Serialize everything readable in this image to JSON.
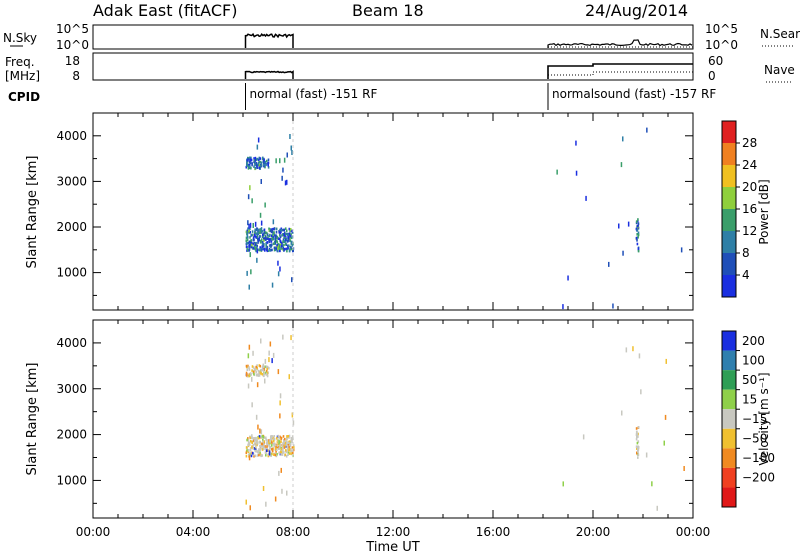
{
  "header": {
    "station": "Adak East (fitACF)",
    "beam": "Beam 18",
    "date": "24/Aug/2014"
  },
  "panels": {
    "nsky_label": "N.Sky",
    "nsearch_label": "N.Search",
    "freq_label_line1": "Freq.",
    "freq_label_line2": "[MHz]",
    "nave_label": "Nave",
    "cpid_label": "CPID",
    "noise_ticks": [
      "10^5",
      "10^0"
    ],
    "freq_ticks": [
      "18",
      "8"
    ],
    "nave_ticks": [
      "60",
      "0"
    ]
  },
  "cpid_segments": [
    {
      "start_hour": 6.1,
      "label": "normal (fast) -151 RF"
    },
    {
      "start_hour": 18.2,
      "label": "normalsound (fast) -157 RF"
    }
  ],
  "chart_data": [
    {
      "type": "heatmap",
      "parameter": "Power",
      "xlabel": "Time UT",
      "ylabel": "Slant Range [km]",
      "xticks": [
        "00:00",
        "04:00",
        "08:00",
        "12:00",
        "16:00",
        "20:00",
        "00:00"
      ],
      "xlim": [
        0,
        24
      ],
      "ylim": [
        180,
        4500
      ],
      "yticks": [
        1000,
        2000,
        3000,
        4000
      ],
      "colorbar": {
        "label": "Power [dB]",
        "ticks": [
          4,
          8,
          12,
          16,
          20,
          24,
          28
        ],
        "range": [
          0,
          32
        ],
        "colors": [
          "#1a2fe0",
          "#1f4fb8",
          "#2e7fa6",
          "#3a9e6a",
          "#8fcf3c",
          "#f0c020",
          "#f08020",
          "#e02020"
        ]
      },
      "echo_regions": [
        {
          "start_hour": 6.1,
          "end_hour": 8.0,
          "range_km": [
            1500,
            2000
          ],
          "power_db": 12
        },
        {
          "start_hour": 6.1,
          "end_hour": 7.0,
          "range_km": [
            3300,
            3550
          ],
          "power_db": 6
        },
        {
          "start_hour": 21.7,
          "end_hour": 21.8,
          "range_km": [
            1500,
            2200
          ],
          "power_db": 8
        }
      ]
    },
    {
      "type": "heatmap",
      "parameter": "Velocity",
      "xlabel": "Time UT",
      "ylabel": "Slant Range [km]",
      "xticks": [
        "00:00",
        "04:00",
        "08:00",
        "12:00",
        "16:00",
        "20:00",
        "00:00"
      ],
      "xlim": [
        0,
        24
      ],
      "ylim": [
        180,
        4500
      ],
      "yticks": [
        1000,
        2000,
        3000,
        4000
      ],
      "colorbar": {
        "label": "Velocity [m s⁻¹]",
        "ticks": [
          "200",
          "100",
          "50",
          "15",
          "−15",
          "−50",
          "−100",
          "−200"
        ],
        "colors": [
          "#1a2fe0",
          "#2f7fae",
          "#2e9e55",
          "#8fd04a",
          "#c8c8c0",
          "#f0c030",
          "#f08a20",
          "#f04020",
          "#e01818"
        ]
      },
      "echo_regions": [
        {
          "start_hour": 6.1,
          "end_hour": 8.0,
          "range_km": [
            1550,
            2000
          ],
          "velocity_mps": -10
        },
        {
          "start_hour": 6.1,
          "end_hour": 7.0,
          "range_km": [
            3300,
            3550
          ],
          "velocity_mps": -30
        },
        {
          "start_hour": 21.7,
          "end_hour": 21.8,
          "range_km": [
            1500,
            2200
          ],
          "velocity_mps": 0
        }
      ]
    }
  ],
  "colors": {
    "axis": "#000000",
    "sky_trace": "#000000"
  }
}
